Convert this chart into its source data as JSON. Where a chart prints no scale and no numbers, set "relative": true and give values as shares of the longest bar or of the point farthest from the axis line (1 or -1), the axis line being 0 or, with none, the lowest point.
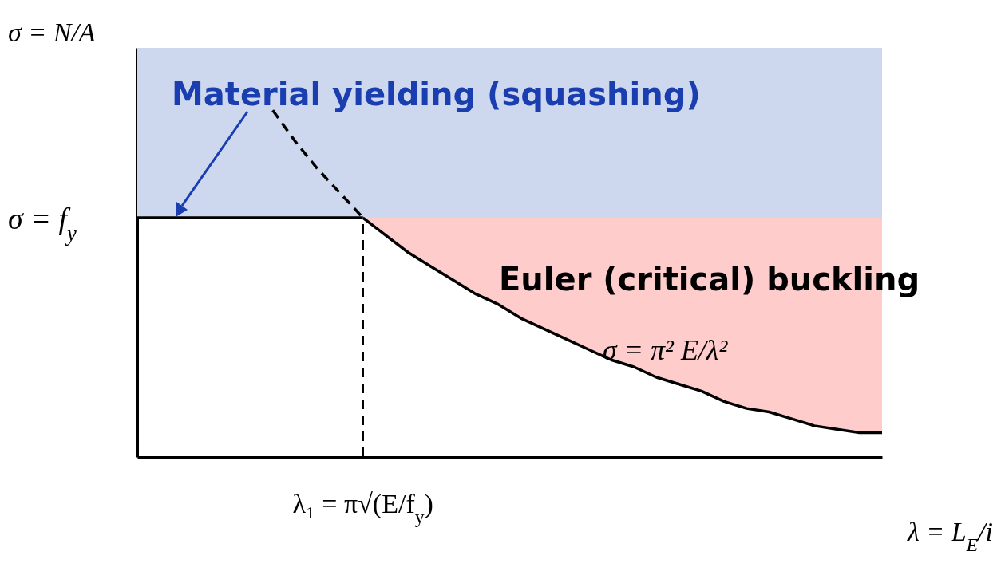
{
  "chart_data": {
    "type": "line",
    "relative": true,
    "xlabel": "λ = L$_{E}$/i",
    "ylabel": "σ = N/A",
    "categories": [
      null,
      null,
      null,
      null,
      null,
      null,
      null,
      null,
      null,
      null,
      null,
      null,
      null,
      null,
      null,
      null,
      null,
      null,
      null,
      null,
      null,
      null,
      null,
      null,
      null,
      null,
      null,
      null,
      null,
      null,
      null,
      null,
      null,
      null
    ],
    "series": [
      {
        "type": "line",
        "color": "#000000",
        "values": [
          0.69,
          0.69,
          0.69,
          0.69,
          0.69,
          0.69,
          0.69,
          0.69,
          0.69,
          0.69,
          0.69,
          null,
          null,
          null,
          null,
          null,
          null,
          null,
          null,
          null,
          null,
          null,
          null,
          null,
          null,
          null,
          null,
          null,
          null,
          null,
          null,
          null,
          null,
          null
        ]
      },
      {
        "type": "line",
        "color": "#000000",
        "line_style": "dashed",
        "values": [
          null,
          null,
          null,
          null,
          null,
          null,
          1.0,
          0.91,
          0.83,
          0.76,
          0.69,
          null,
          null,
          null,
          null,
          null,
          null,
          null,
          null,
          null,
          null,
          null,
          null,
          null,
          null,
          null,
          null,
          null,
          null,
          null,
          null,
          null,
          null,
          null
        ]
      },
      {
        "type": "line",
        "color": "#000000",
        "values": [
          null,
          null,
          null,
          null,
          null,
          null,
          null,
          null,
          null,
          null,
          0.69,
          0.64,
          0.59,
          0.55,
          0.51,
          0.47,
          0.44,
          0.4,
          0.37,
          0.34,
          0.31,
          0.28,
          0.26,
          0.23,
          0.21,
          0.19,
          0.16,
          0.14,
          0.13,
          0.11,
          0.09,
          0.08,
          0.07,
          0.07
        ],
        "lower": [
          null,
          null,
          null,
          null,
          null,
          null,
          null,
          null,
          null,
          null,
          0.69,
          0.64,
          0.59,
          0.55,
          0.51,
          0.47,
          0.44,
          0.4,
          0.37,
          0.34,
          0.31,
          0.28,
          0.26,
          0.23,
          0.21,
          0.19,
          0.16,
          0.14,
          0.13,
          0.11,
          0.09,
          0.08,
          0.07,
          0.07
        ],
        "upper": [
          null,
          null,
          null,
          null,
          null,
          null,
          null,
          null,
          null,
          null,
          0.69,
          0.69,
          0.69,
          0.69,
          0.69,
          0.69,
          0.69,
          0.69,
          0.69,
          0.69,
          0.69,
          0.69,
          0.69,
          0.69,
          0.69,
          0.69,
          0.69,
          0.69,
          0.69,
          0.69,
          0.69,
          0.69,
          0.69,
          0.69
        ]
      }
    ],
    "bands": [
      {
        "axis": "y",
        "from": 0.69,
        "to": 1.18,
        "color": "#cdd8ee"
      }
    ],
    "annotations": [
      "Material yielding (squashing)",
      "Euler (critical) buckling",
      "σ = π² E/λ²",
      "σ = f$_{y}$",
      "λ₁ = π√(E/f$_{y}$)"
    ]
  }
}
